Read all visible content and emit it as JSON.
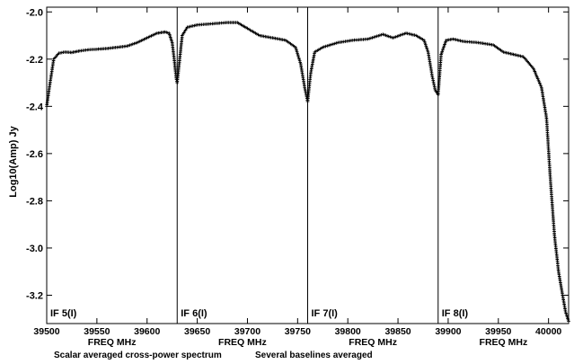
{
  "chart_data": {
    "type": "line",
    "ylabel": "Log10(Amp) Jy",
    "ylim": [
      -3.32,
      -1.98
    ],
    "yticks": [
      -2.0,
      -2.2,
      -2.4,
      -2.6,
      -2.8,
      -3.0,
      -3.2
    ],
    "marker": "plus",
    "series_color": "#000000",
    "footer_left": "Scalar averaged cross-power spectrum",
    "footer_right": "Several baselines averaged",
    "panels": [
      {
        "label": "IF 5(I)",
        "xlabel": "FREQ MHz",
        "xlim": [
          39500,
          39630
        ],
        "xticks": [
          39500,
          39550,
          39600
        ],
        "points": [
          [
            39500,
            -2.4
          ],
          [
            39503,
            -2.31
          ],
          [
            39507,
            -2.2
          ],
          [
            39512,
            -2.175
          ],
          [
            39518,
            -2.17
          ],
          [
            39525,
            -2.172
          ],
          [
            39533,
            -2.165
          ],
          [
            39542,
            -2.16
          ],
          [
            39550,
            -2.158
          ],
          [
            39560,
            -2.155
          ],
          [
            39570,
            -2.15
          ],
          [
            39580,
            -2.145
          ],
          [
            39590,
            -2.13
          ],
          [
            39600,
            -2.11
          ],
          [
            39610,
            -2.09
          ],
          [
            39618,
            -2.085
          ],
          [
            39622,
            -2.09
          ],
          [
            39625,
            -2.13
          ],
          [
            39627,
            -2.2
          ],
          [
            39629,
            -2.28
          ],
          [
            39630,
            -2.3
          ]
        ]
      },
      {
        "label": "IF 6(I)",
        "xlabel": "FREQ MHz",
        "xlim": [
          39630,
          39760
        ],
        "xticks": [
          39650,
          39700,
          39750
        ],
        "points": [
          [
            39630,
            -2.3
          ],
          [
            39632,
            -2.22
          ],
          [
            39635,
            -2.1
          ],
          [
            39640,
            -2.065
          ],
          [
            39650,
            -2.055
          ],
          [
            39665,
            -2.05
          ],
          [
            39680,
            -2.045
          ],
          [
            39690,
            -2.045
          ],
          [
            39700,
            -2.07
          ],
          [
            39712,
            -2.1
          ],
          [
            39725,
            -2.11
          ],
          [
            39738,
            -2.12
          ],
          [
            39748,
            -2.15
          ],
          [
            39753,
            -2.22
          ],
          [
            39757,
            -2.32
          ],
          [
            39760,
            -2.38
          ]
        ]
      },
      {
        "label": "IF 7(I)",
        "xlabel": "FREQ MHz",
        "xlim": [
          39760,
          39890
        ],
        "xticks": [
          39800,
          39850
        ],
        "points": [
          [
            39760,
            -2.38
          ],
          [
            39763,
            -2.26
          ],
          [
            39767,
            -2.17
          ],
          [
            39775,
            -2.15
          ],
          [
            39790,
            -2.13
          ],
          [
            39805,
            -2.12
          ],
          [
            39820,
            -2.115
          ],
          [
            39835,
            -2.095
          ],
          [
            39845,
            -2.11
          ],
          [
            39858,
            -2.09
          ],
          [
            39868,
            -2.1
          ],
          [
            39876,
            -2.12
          ],
          [
            39880,
            -2.17
          ],
          [
            39884,
            -2.27
          ],
          [
            39887,
            -2.33
          ],
          [
            39890,
            -2.35
          ]
        ]
      },
      {
        "label": "IF 8(I)",
        "xlabel": "FREQ MHz",
        "xlim": [
          39890,
          40020
        ],
        "xticks": [
          39900,
          39950,
          40000
        ],
        "points": [
          [
            39890,
            -2.35
          ],
          [
            39893,
            -2.18
          ],
          [
            39898,
            -2.12
          ],
          [
            39905,
            -2.115
          ],
          [
            39915,
            -2.125
          ],
          [
            39930,
            -2.13
          ],
          [
            39945,
            -2.14
          ],
          [
            39955,
            -2.17
          ],
          [
            39965,
            -2.18
          ],
          [
            39975,
            -2.19
          ],
          [
            39985,
            -2.24
          ],
          [
            39993,
            -2.32
          ],
          [
            39998,
            -2.45
          ],
          [
            40002,
            -2.72
          ],
          [
            40006,
            -2.95
          ],
          [
            40010,
            -3.1
          ],
          [
            40014,
            -3.2
          ],
          [
            40017,
            -3.27
          ],
          [
            40020,
            -3.31
          ]
        ]
      }
    ]
  }
}
